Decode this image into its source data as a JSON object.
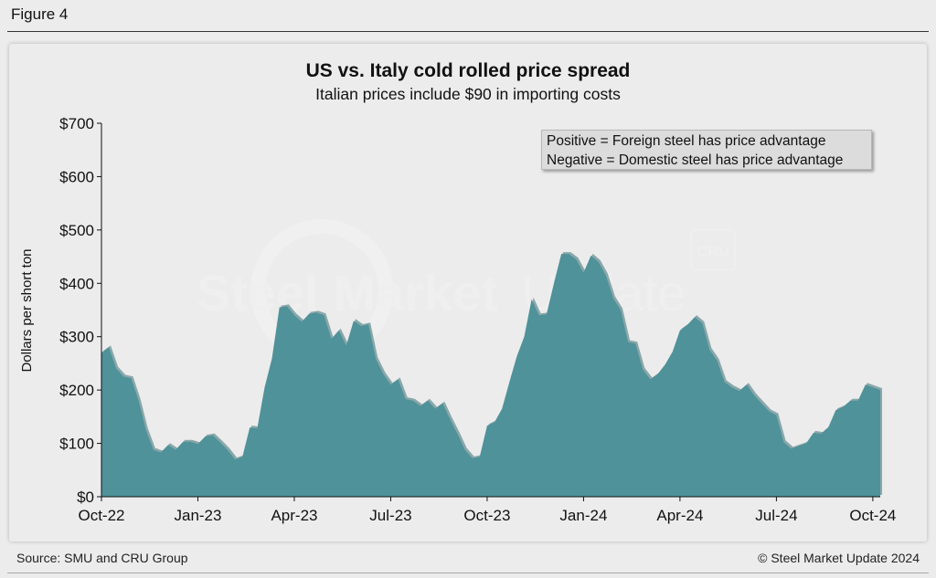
{
  "figure_label": "Figure 4",
  "footer": {
    "source": "Source: SMU and CRU Group",
    "copyright": "© Steel Market Update 2024"
  },
  "watermark": {
    "text_bold": "Steel Market",
    "text_light": "Update",
    "badge": "CRU"
  },
  "colors": {
    "area_fill": "#4f9299",
    "area_shadow": "#8aa7aa",
    "axis": "#111111"
  },
  "chart_data": {
    "type": "area",
    "title": "US vs. Italy cold rolled price spread",
    "subtitle": "Italian prices include $90 in importing costs",
    "xlabel": "",
    "ylabel": "Dollars per short ton",
    "ylim": [
      0,
      700
    ],
    "y_ticks": [
      0,
      100,
      200,
      300,
      400,
      500,
      600,
      700
    ],
    "y_tick_labels": [
      "$0",
      "$100",
      "$200",
      "$300",
      "$400",
      "$500",
      "$600",
      "$700"
    ],
    "x_tick_labels": [
      "Oct-22",
      "Jan-23",
      "Apr-23",
      "Jul-23",
      "Oct-23",
      "Jan-24",
      "Apr-24",
      "Jul-24",
      "Oct-24"
    ],
    "x_tick_weeks": [
      0,
      13,
      26,
      39,
      52,
      65,
      78,
      91,
      104
    ],
    "grid": false,
    "annotations": [
      "Positive = Foreign steel has price advantage",
      "Negative = Domestic steel has price advantage"
    ],
    "series": [
      {
        "name": "US vs. Italy CRC spread ($/st)",
        "x_unit": "weeks since Oct-22",
        "x": [
          0,
          1,
          2,
          3,
          4,
          5,
          6,
          7,
          8,
          9,
          10,
          11,
          12,
          13,
          14,
          15,
          16,
          17,
          18,
          19,
          20,
          21,
          22,
          23,
          24,
          25,
          26,
          27,
          28,
          29,
          30,
          31,
          32,
          33,
          34,
          35,
          36,
          37,
          38,
          39,
          40,
          41,
          42,
          43,
          44,
          45,
          46,
          47,
          48,
          49,
          50,
          51,
          52,
          53,
          54,
          55,
          56,
          57,
          58,
          59,
          60,
          61,
          62,
          63,
          64,
          65,
          66,
          67,
          68,
          69,
          70,
          71,
          72,
          73,
          74,
          75,
          76,
          77,
          78,
          79,
          80,
          81,
          82,
          83,
          84,
          85,
          86,
          87,
          88,
          89,
          90,
          91,
          92,
          93,
          94,
          95,
          96,
          97,
          98,
          99,
          100,
          101,
          102,
          103,
          104,
          105
        ],
        "values": [
          270,
          280,
          240,
          225,
          222,
          180,
          125,
          88,
          83,
          97,
          88,
          103,
          103,
          99,
          113,
          115,
          102,
          88,
          70,
          75,
          130,
          128,
          205,
          260,
          355,
          357,
          340,
          328,
          343,
          345,
          340,
          296,
          312,
          283,
          330,
          320,
          323,
          258,
          230,
          210,
          220,
          183,
          180,
          170,
          180,
          165,
          175,
          145,
          118,
          88,
          72,
          75,
          133,
          140,
          165,
          215,
          263,
          300,
          370,
          340,
          342,
          400,
          455,
          455,
          445,
          420,
          452,
          440,
          415,
          372,
          350,
          290,
          287,
          238,
          220,
          230,
          248,
          272,
          312,
          322,
          337,
          325,
          275,
          255,
          215,
          205,
          198,
          210,
          190,
          175,
          160,
          153,
          102,
          90,
          95,
          100,
          120,
          118,
          130,
          162,
          168,
          180,
          180,
          210,
          205,
          200
        ]
      }
    ]
  }
}
